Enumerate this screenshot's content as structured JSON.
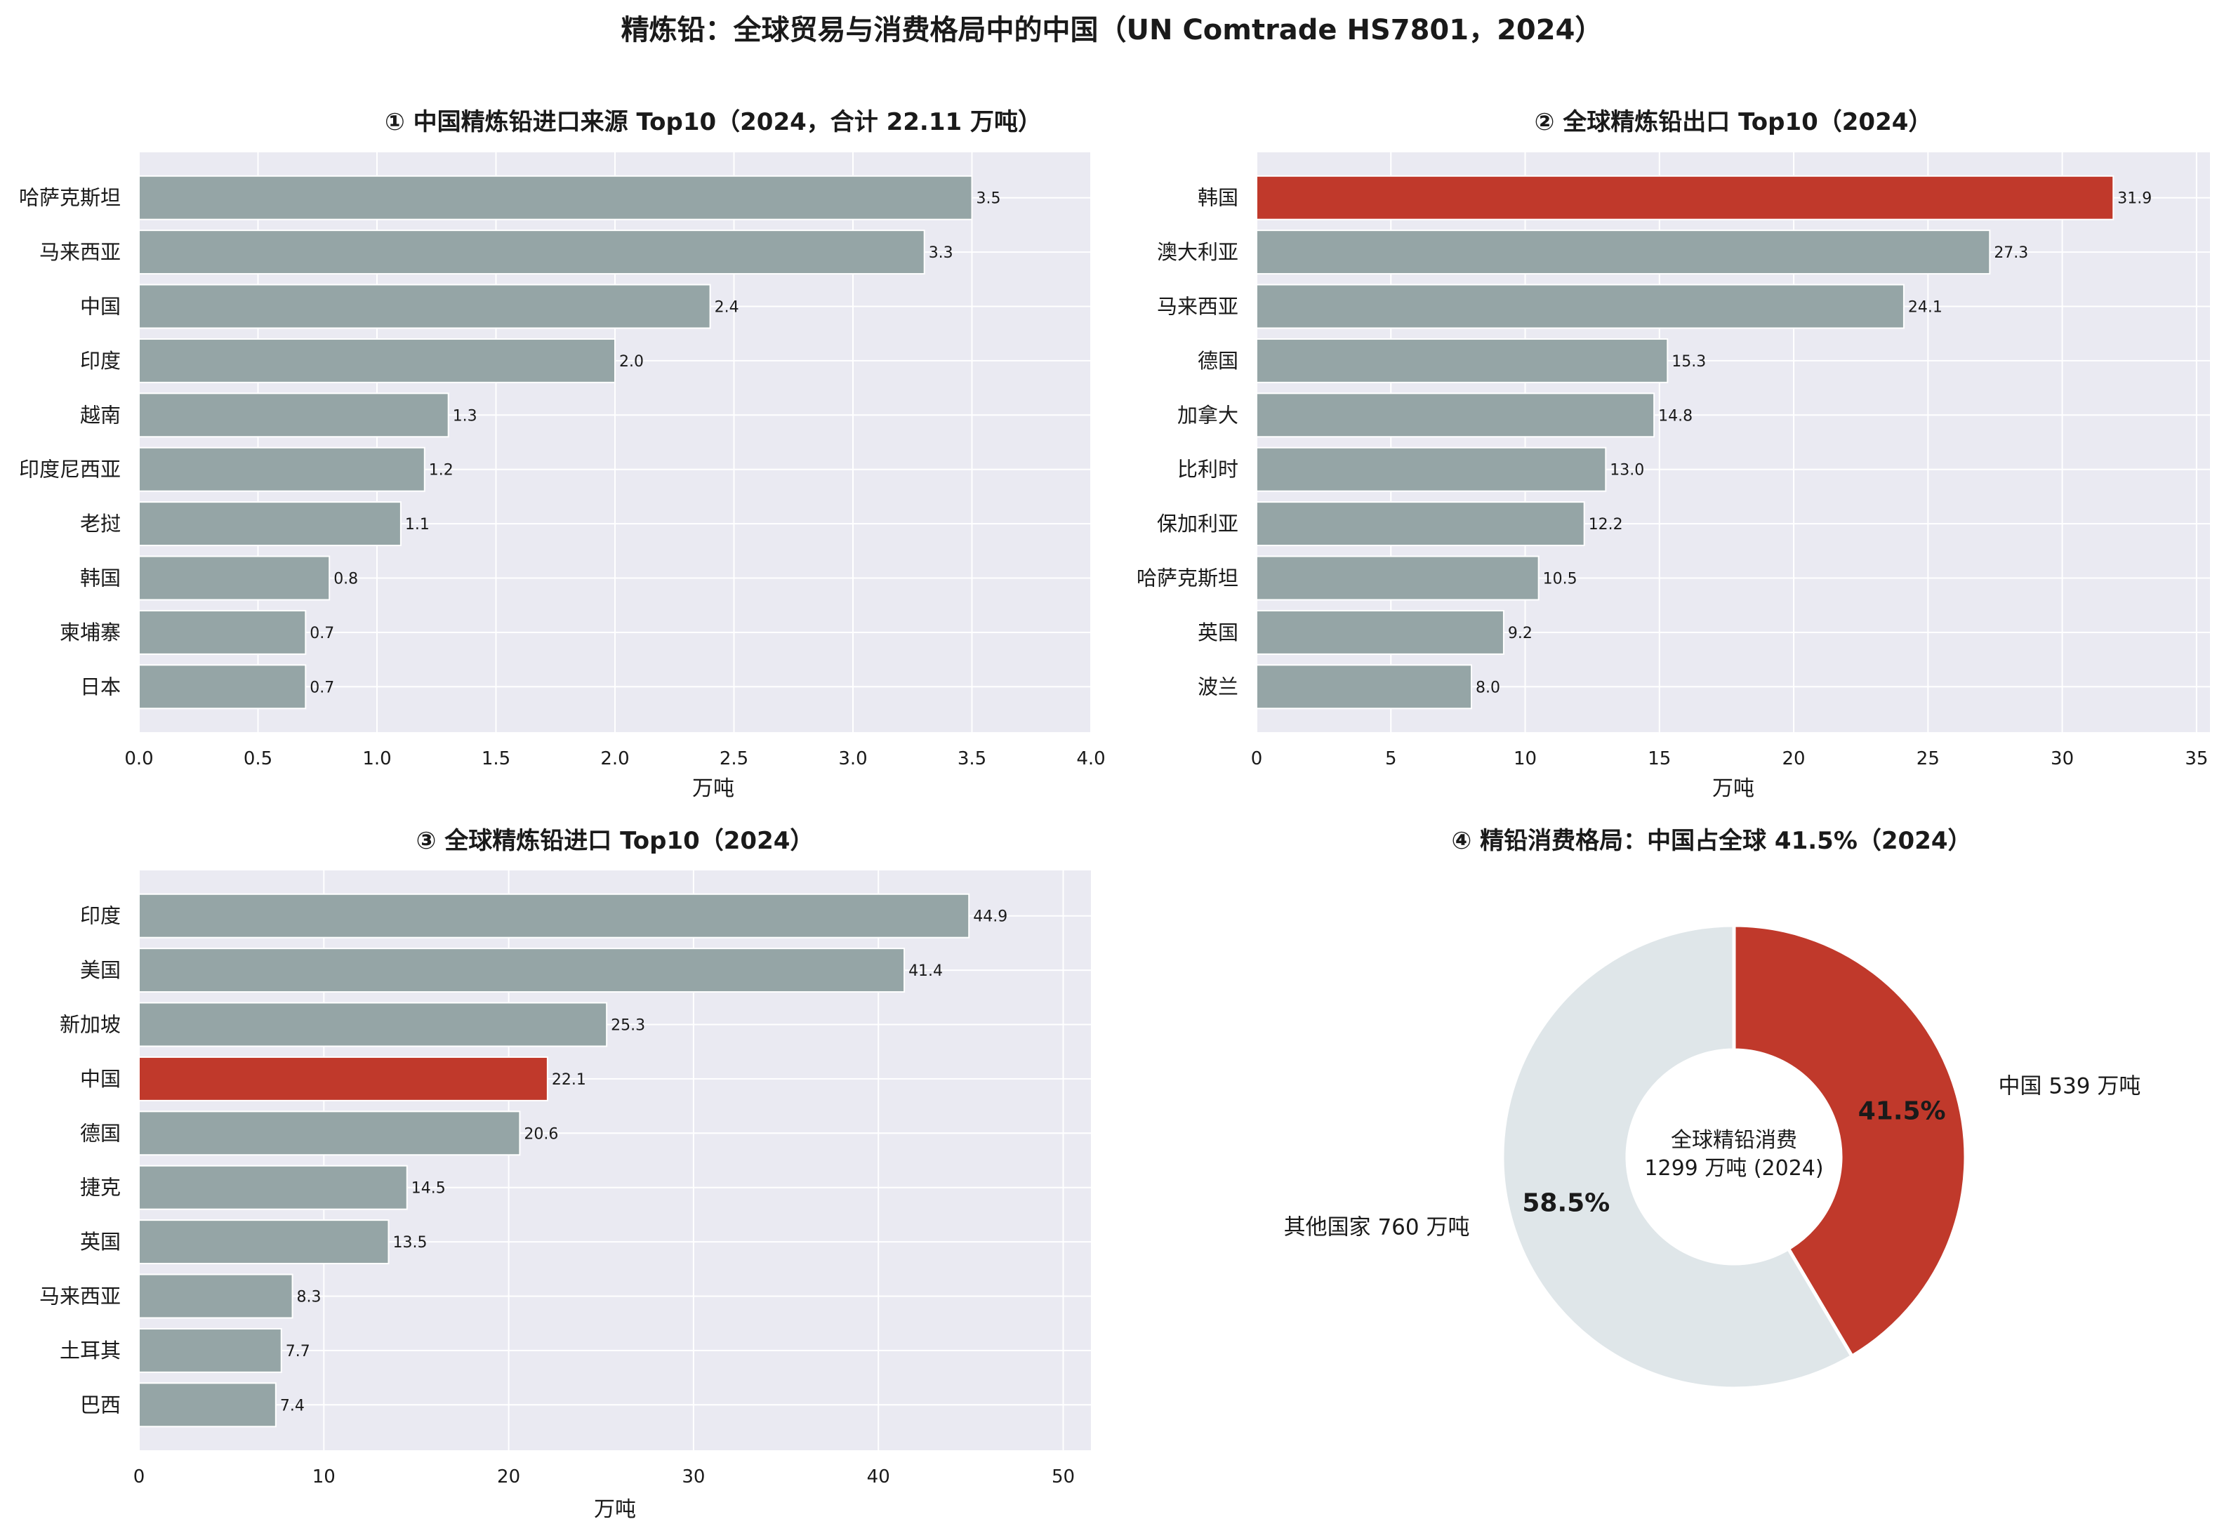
{
  "suptitle": "精炼铅：全球贸易与消费格局中的中国（UN Comtrade HS7801，2024）",
  "colors": {
    "bar": "#95a5a6",
    "highlight": "#c0392b",
    "panel_bg": "#eaeaf2",
    "grid": "#ffffff",
    "donut_rest": "#dfe6e9"
  },
  "chart_data": [
    {
      "type": "bar",
      "orientation": "horizontal",
      "title": "① 中国精炼铅进口来源 Top10（2024，合计 22.11 万吨）",
      "xlabel": "万吨",
      "xlim": [
        0,
        4.0
      ],
      "xticks": [
        "0.0",
        "0.5",
        "1.0",
        "1.5",
        "2.0",
        "2.5",
        "3.0",
        "3.5",
        "4.0"
      ],
      "categories": [
        "哈萨克斯坦",
        "马来西亚",
        "中国",
        "印度",
        "越南",
        "印度尼西亚",
        "老挝",
        "韩国",
        "柬埔寨",
        "日本"
      ],
      "values": [
        3.5,
        3.3,
        2.4,
        2.0,
        1.3,
        1.2,
        1.1,
        0.8,
        0.7,
        0.7
      ],
      "value_labels": [
        "3.5",
        "3.3",
        "2.4",
        "2.0",
        "1.3",
        "1.2",
        "1.1",
        "0.8",
        "0.7",
        "0.7"
      ],
      "highlight": []
    },
    {
      "type": "bar",
      "orientation": "horizontal",
      "title": "② 全球精炼铅出口 Top10（2024）",
      "xlabel": "万吨",
      "xlim": [
        0,
        35.5
      ],
      "xticks": [
        "0",
        "5",
        "10",
        "15",
        "20",
        "25",
        "30",
        "35"
      ],
      "categories": [
        "韩国",
        "澳大利亚",
        "马来西亚",
        "德国",
        "加拿大",
        "比利时",
        "保加利亚",
        "哈萨克斯坦",
        "英国",
        "波兰"
      ],
      "values": [
        31.9,
        27.3,
        24.1,
        15.3,
        14.8,
        13.0,
        12.2,
        10.5,
        9.2,
        8.0
      ],
      "value_labels": [
        "31.9",
        "27.3",
        "24.1",
        "15.3",
        "14.8",
        "13.0",
        "12.2",
        "10.5",
        "9.2",
        "8.0"
      ],
      "highlight": [
        "韩国"
      ]
    },
    {
      "type": "bar",
      "orientation": "horizontal",
      "title": "③ 全球精炼铅进口 Top10（2024）",
      "xlabel": "万吨",
      "xlim": [
        0,
        51.5
      ],
      "xticks": [
        "0",
        "10",
        "20",
        "30",
        "40",
        "50"
      ],
      "categories": [
        "印度",
        "美国",
        "新加坡",
        "中国",
        "德国",
        "捷克",
        "英国",
        "马来西亚",
        "土耳其",
        "巴西"
      ],
      "values": [
        44.9,
        41.4,
        25.3,
        22.1,
        20.6,
        14.5,
        13.5,
        8.3,
        7.7,
        7.4
      ],
      "value_labels": [
        "44.9",
        "41.4",
        "25.3",
        "22.1",
        "20.6",
        "14.5",
        "13.5",
        "8.3",
        "7.7",
        "7.4"
      ],
      "highlight": [
        "中国"
      ]
    },
    {
      "type": "pie",
      "donut": true,
      "title": "④ 精铅消费格局：中国占全球 41.5%（2024）",
      "slices": [
        {
          "label": "中国 539 万吨",
          "value": 539,
          "pct_label": "41.5%",
          "highlight": true
        },
        {
          "label": "其他国家 760 万吨",
          "value": 760,
          "pct_label": "58.5%",
          "highlight": false
        }
      ],
      "center_text": [
        "全球精铅消费",
        "1299 万吨 (2024)"
      ]
    }
  ]
}
